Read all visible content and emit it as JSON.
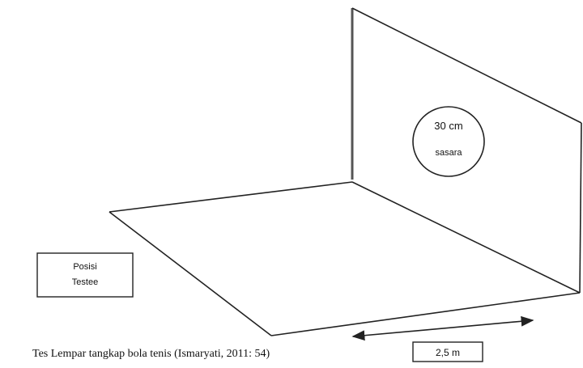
{
  "target": {
    "size_label": "30 cm",
    "name_label": "sasara"
  },
  "position_box": {
    "line1": "Posisi",
    "line2": "Testee"
  },
  "distance_label": "2,5 m",
  "caption": "Tes Lempar tangkap bola tenis (Ismaryati, 2011: 54)"
}
